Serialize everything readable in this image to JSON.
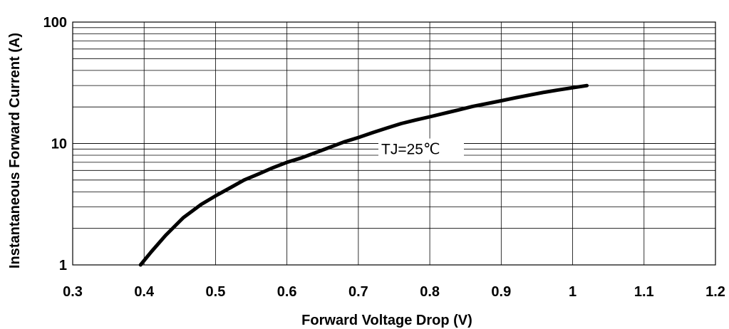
{
  "chart_data": {
    "type": "line",
    "xlabel": "Forward Voltage Drop (V)",
    "ylabel": "Instantaneous Forward Current (A)",
    "xlim": [
      0.3,
      1.2
    ],
    "ylim": [
      1,
      100
    ],
    "yscale": "log",
    "grid": true,
    "x_ticks": [
      "0.3",
      "0.4",
      "0.5",
      "0.6",
      "0.7",
      "0.8",
      "0.9",
      "1",
      "1.1",
      "1.2"
    ],
    "y_ticks": [
      "1",
      "10",
      "100"
    ],
    "annotation": "TJ=25℃",
    "series": [
      {
        "x": [
          0.395,
          0.41,
          0.43,
          0.455,
          0.48,
          0.5,
          0.52,
          0.54,
          0.56,
          0.58,
          0.6,
          0.62,
          0.64,
          0.66,
          0.68,
          0.7,
          0.72,
          0.74,
          0.76,
          0.78,
          0.8,
          0.82,
          0.84,
          0.86,
          0.88,
          0.9,
          0.92,
          0.94,
          0.96,
          0.98,
          1.0,
          1.02
        ],
        "y": [
          1.0,
          1.28,
          1.75,
          2.45,
          3.15,
          3.7,
          4.3,
          5.0,
          5.6,
          6.3,
          7.0,
          7.6,
          8.4,
          9.3,
          10.3,
          11.2,
          12.3,
          13.4,
          14.6,
          15.6,
          16.6,
          17.7,
          18.9,
          20.2,
          21.3,
          22.5,
          23.8,
          25.1,
          26.4,
          27.6,
          28.8,
          30.0
        ]
      }
    ]
  }
}
